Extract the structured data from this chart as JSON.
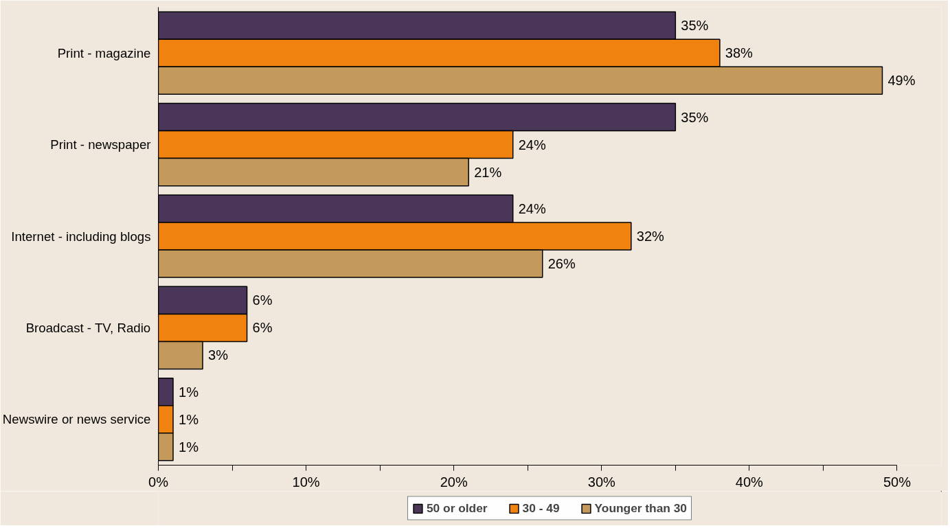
{
  "chart_data": {
    "type": "bar",
    "orientation": "horizontal",
    "categories": [
      "Print - magazine",
      "Print - newspaper",
      "Internet - including blogs",
      "Broadcast - TV, Radio",
      "Newswire or news service"
    ],
    "series": [
      {
        "name": "50 or older",
        "color": "#4a3658",
        "values": [
          35,
          35,
          24,
          6,
          1
        ],
        "value_labels": [
          "35%",
          "35%",
          "24%",
          "6%",
          "1%"
        ]
      },
      {
        "name": "30 - 49",
        "color": "#f0820f",
        "values": [
          38,
          24,
          32,
          6,
          1
        ],
        "value_labels": [
          "38%",
          "24%",
          "32%",
          "6%",
          "1%"
        ]
      },
      {
        "name": "Younger than 30",
        "color": "#c49a5c",
        "values": [
          49,
          21,
          26,
          3,
          1
        ],
        "value_labels": [
          "49%",
          "21%",
          "26%",
          "3%",
          "1%"
        ]
      }
    ],
    "xlim": [
      0,
      50
    ],
    "xticks": [
      {
        "value": 0,
        "label": "0%"
      },
      {
        "value": 5,
        "label": null
      },
      {
        "value": 10,
        "label": "10%"
      },
      {
        "value": 15,
        "label": null
      },
      {
        "value": 20,
        "label": "20%"
      },
      {
        "value": 25,
        "label": null
      },
      {
        "value": 30,
        "label": "30%"
      },
      {
        "value": 35,
        "label": null
      },
      {
        "value": 40,
        "label": "40%"
      },
      {
        "value": 45,
        "label": null
      },
      {
        "value": 50,
        "label": "50%"
      }
    ],
    "grid": false,
    "legend": "bottom"
  }
}
